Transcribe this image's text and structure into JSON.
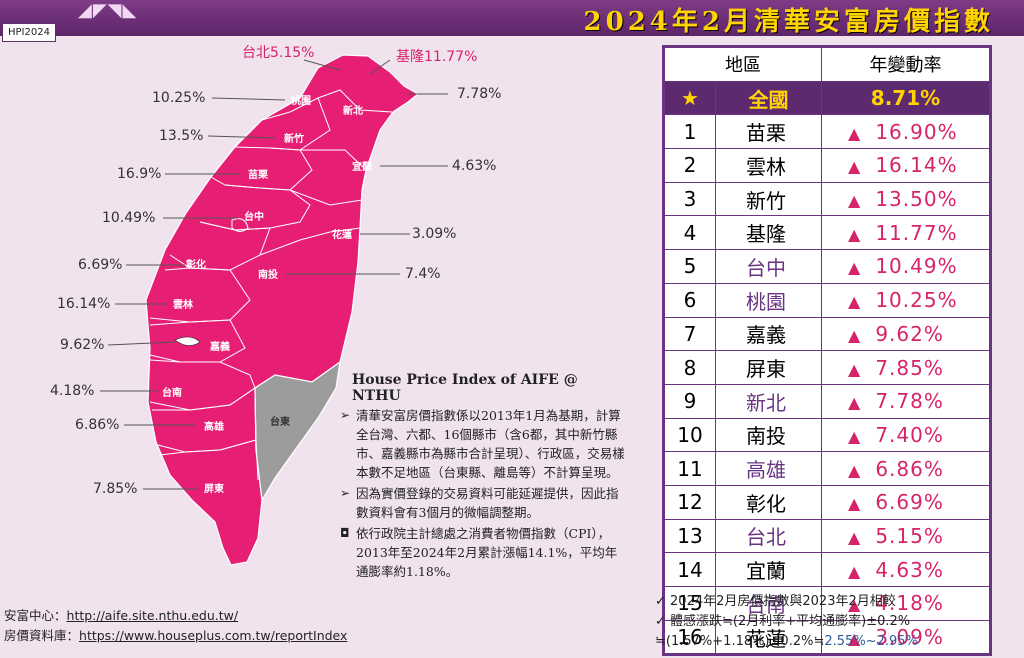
{
  "header": {
    "logo": "◢◤◥◣",
    "title": "2024年2月清華安富房價指數",
    "badge": "HPI2024"
  },
  "map": {
    "districts": [
      "桃園",
      "新北",
      "新竹",
      "宜蘭",
      "苗栗",
      "台中",
      "花蓮",
      "彰化",
      "南投",
      "雲林",
      "嘉義",
      "台南",
      "台東",
      "高雄",
      "屏東"
    ],
    "labels": [
      {
        "name": "台北",
        "text": "台北5.15%"
      },
      {
        "name": "基隆",
        "text": "基隆11.77%"
      },
      {
        "name": "新北",
        "text": "7.78%"
      },
      {
        "name": "桃園",
        "text": "10.25%"
      },
      {
        "name": "新竹",
        "text": "13.5%"
      },
      {
        "name": "宜蘭",
        "text": "4.63%"
      },
      {
        "name": "苗栗",
        "text": "16.9%"
      },
      {
        "name": "台中",
        "text": "10.49%"
      },
      {
        "name": "花蓮",
        "text": "3.09%"
      },
      {
        "name": "彰化",
        "text": "6.69%"
      },
      {
        "name": "南投",
        "text": "7.4%"
      },
      {
        "name": "雲林",
        "text": "16.14%"
      },
      {
        "name": "嘉義",
        "text": "9.62%"
      },
      {
        "name": "台南",
        "text": "4.18%"
      },
      {
        "name": "高雄",
        "text": "6.86%"
      },
      {
        "name": "屏東",
        "text": "7.85%"
      }
    ]
  },
  "notes": {
    "heading": "House Price Index of AIFE @ NTHU",
    "items": [
      {
        "bullet": "➢",
        "text": "清華安富房價指數係以2013年1月為基期，計算全台灣、六都、16個縣市（含6都，其中新竹縣市、嘉義縣市為縣市合計呈現）、行政區，交易樣本數不足地區（台東縣、離島等）不計算呈現。"
      },
      {
        "bullet": "➢",
        "text": "因為實價登錄的交易資料可能延遲提供，因此指數資料會有3個月的微幅調整期。"
      },
      {
        "bullet": "◘",
        "text": "依行政院主計總處之消費者物價指數（CPI），2013年至2024年2月累計漲幅14.1%，平均年通膨率約1.18%。"
      }
    ]
  },
  "footer": {
    "line1_label": "安富中心：",
    "line1_url": "http://aife.site.nthu.edu.tw/",
    "line2_label": "房價資料庫：",
    "line2_url": "https://www.houseplus.com.tw/reportIndex"
  },
  "table": {
    "headers": [
      "地區",
      "年變動率"
    ],
    "nation": {
      "rank": "★",
      "region": "全國",
      "rate": "8.71%"
    },
    "up_symbol": "▲",
    "rows": [
      {
        "rank": "1",
        "region": "苗栗",
        "rate": "16.90%"
      },
      {
        "rank": "2",
        "region": "雲林",
        "rate": "16.14%"
      },
      {
        "rank": "3",
        "region": "新竹",
        "rate": "13.50%"
      },
      {
        "rank": "4",
        "region": "基隆",
        "rate": "11.77%"
      },
      {
        "rank": "5",
        "region": "台中",
        "rate": "10.49%"
      },
      {
        "rank": "6",
        "region": "桃園",
        "rate": "10.25%"
      },
      {
        "rank": "7",
        "region": "嘉義",
        "rate": "9.62%"
      },
      {
        "rank": "8",
        "region": "屏東",
        "rate": "7.85%"
      },
      {
        "rank": "9",
        "region": "新北",
        "rate": "7.78%"
      },
      {
        "rank": "10",
        "region": "南投",
        "rate": "7.40%"
      },
      {
        "rank": "11",
        "region": "高雄",
        "rate": "6.86%"
      },
      {
        "rank": "12",
        "region": "彰化",
        "rate": "6.69%"
      },
      {
        "rank": "13",
        "region": "台北",
        "rate": "5.15%"
      },
      {
        "rank": "14",
        "region": "宜蘭",
        "rate": "4.63%"
      },
      {
        "rank": "15",
        "region": "台南",
        "rate": "4.18%"
      },
      {
        "rank": "16",
        "region": "花蓮",
        "rate": "3.09%"
      }
    ]
  },
  "bottom": {
    "line1": "✓ 2024年2月房價指數與2023年2月相較",
    "line2": "✓ 體感漲跌≒(2月利率+平均通膨率)±0.2%",
    "line3a": "≒(1.57%+1.18%)±0.2%≒",
    "line3b": "2.55%~2.95%"
  },
  "colors": {
    "map_fill": "#e61e74",
    "taitung_fill": "#999999",
    "accent": "#6a3483",
    "title": "#ffd400"
  }
}
